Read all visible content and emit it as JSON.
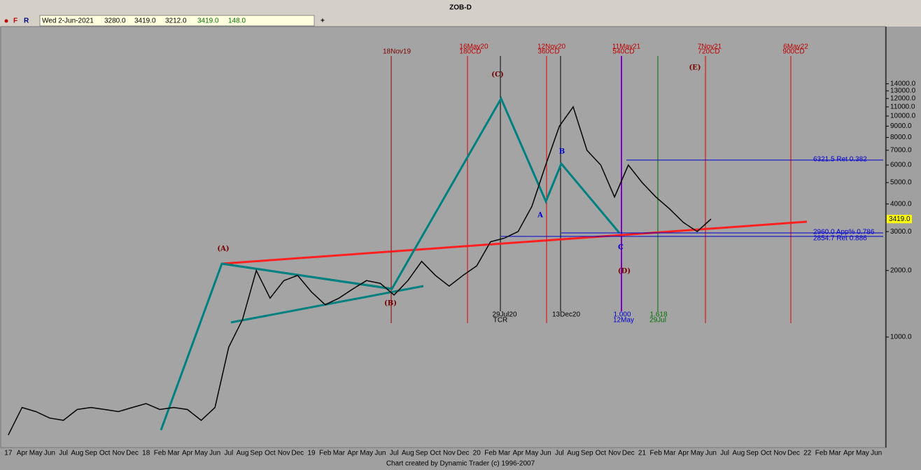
{
  "window_title": "ZOB-D",
  "toolbar": {
    "buttons": [
      "F",
      "R"
    ],
    "date": "Wed 2-Jun-2021",
    "values": [
      "3280.0",
      "3419.0",
      "3212.0",
      "3419.0",
      "148.0"
    ]
  },
  "footer": "Chart created by Dynamic Trader  (c) 1996-2007",
  "chart_data": {
    "type": "line",
    "log_scale": true,
    "categories": [
      "17",
      "Apr",
      "May",
      "Jun",
      "Jul",
      "Aug",
      "Sep",
      "Oct",
      "Nov",
      "Dec",
      "18",
      "Feb",
      "Mar",
      "Apr",
      "May",
      "Jun",
      "Jul",
      "Aug",
      "Sep",
      "Oct",
      "Nov",
      "Dec",
      "19",
      "Feb",
      "Mar",
      "Apr",
      "May",
      "Jun",
      "Jul",
      "Aug",
      "Sep",
      "Oct",
      "Nov",
      "Dec",
      "20",
      "Feb",
      "Mar",
      "Apr",
      "May",
      "Jun",
      "Jul",
      "Aug",
      "Sep",
      "Oct",
      "Nov",
      "Dec",
      "21",
      "Feb",
      "Mar",
      "Apr",
      "May",
      "Jun",
      "Jul",
      "Aug",
      "Sep",
      "Oct",
      "Nov",
      "Dec",
      "22",
      "Feb",
      "Mar",
      "Apr",
      "May",
      "Jun"
    ],
    "series": [
      {
        "name": "ZOB-D",
        "color": "#000000",
        "values": [
          360,
          480,
          460,
          430,
          420,
          470,
          480,
          470,
          460,
          480,
          500,
          470,
          480,
          470,
          420,
          480,
          900,
          1200,
          2000,
          1500,
          1800,
          1900,
          1600,
          1400,
          1500,
          1650,
          1800,
          1750,
          1550,
          1800,
          2200,
          1900,
          1700,
          1900,
          2100,
          2700,
          2800,
          3000,
          3900,
          6000,
          9000,
          11000,
          7000,
          6000,
          4300,
          6000,
          5000,
          4300,
          3800,
          3300,
          3000,
          3419,
          null,
          null,
          null,
          null,
          null,
          null,
          null,
          null,
          null,
          null,
          null,
          null
        ]
      }
    ],
    "ylim": [
      316,
      25400
    ],
    "yticks": [
      {
        "value": 1000,
        "label": "1000.0"
      },
      {
        "value": 2000,
        "label": "2000.0"
      },
      {
        "value": 3000,
        "label": "3000.0"
      },
      {
        "value": 4000,
        "label": "4000.0"
      },
      {
        "value": 5000,
        "label": "5000.0"
      },
      {
        "value": 6000,
        "label": "6000.0"
      },
      {
        "value": 7000,
        "label": "7000.0"
      },
      {
        "value": 8000,
        "label": "8000.0"
      },
      {
        "value": 9000,
        "label": "9000.0"
      },
      {
        "value": 10000,
        "label": "10000.0"
      },
      {
        "value": 11000,
        "label": "11000.0"
      },
      {
        "value": 12000,
        "label": "12000.0"
      },
      {
        "value": 13000,
        "label": "13000.0"
      },
      {
        "value": 14000,
        "label": "14000.0"
      }
    ],
    "markers": [
      {
        "value": 3419,
        "label": "3419.0"
      }
    ],
    "levels": [
      {
        "value": 6321.5,
        "label": "6321.5 Ret 0.382"
      },
      {
        "value": 2960,
        "label": "2960.0 App% 0.786"
      },
      {
        "value": 2854.7,
        "label": "2854.7 Ret 0.886"
      }
    ],
    "annotations": [
      "18Nov19",
      "16May20",
      "180CD",
      "12Nov20",
      "360CD",
      "11May21",
      "540CD",
      "7Nov21",
      "720CD",
      "6May22",
      "900CD",
      "29Jul20",
      "TCR",
      "13Dec20",
      "1.000",
      "12May",
      "1.618",
      "29Jul",
      "(A)",
      "(B)",
      "(C)",
      "(D)",
      "(E)",
      "A",
      "B",
      "C"
    ]
  }
}
